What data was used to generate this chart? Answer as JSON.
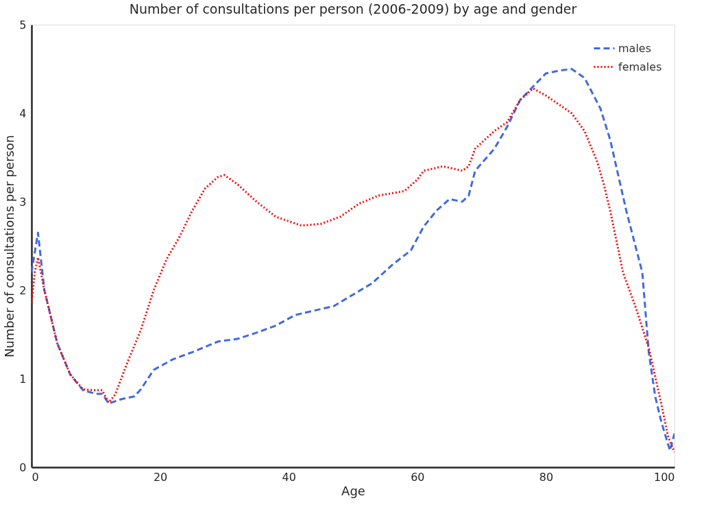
{
  "chart_data": {
    "type": "line",
    "title": "Number of consultations per person (2006-2009) by age and gender",
    "xlabel": "Age",
    "ylabel": "Number of consultations per person",
    "xlim": [
      0,
      100
    ],
    "ylim": [
      0,
      5
    ],
    "xticks": [
      0,
      20,
      40,
      60,
      80,
      100
    ],
    "yticks": [
      0,
      1,
      2,
      3,
      4,
      5
    ],
    "grid": false,
    "legend": "top right",
    "marker": "none",
    "series": [
      {
        "name": "males",
        "color": "#4169e1",
        "line_style": "dashed",
        "x": [
          0,
          1,
          2,
          4,
          6,
          8,
          10,
          11,
          12,
          14,
          16,
          17,
          19,
          22,
          25,
          29,
          32,
          35,
          38,
          41,
          44,
          47,
          50,
          53,
          56,
          59,
          61,
          63,
          65,
          67,
          68,
          69,
          72,
          74,
          76,
          78,
          80,
          82,
          84,
          86,
          88.5,
          90,
          92.5,
          95,
          96,
          97,
          98,
          99.3,
          100
        ],
        "values": [
          2.2,
          2.65,
          2.0,
          1.4,
          1.05,
          0.87,
          0.83,
          0.83,
          0.72,
          0.77,
          0.8,
          0.88,
          1.1,
          1.22,
          1.3,
          1.42,
          1.45,
          1.52,
          1.6,
          1.72,
          1.77,
          1.82,
          1.95,
          2.08,
          2.28,
          2.45,
          2.72,
          2.9,
          3.03,
          3.0,
          3.07,
          3.35,
          3.6,
          3.85,
          4.15,
          4.3,
          4.45,
          4.48,
          4.5,
          4.4,
          4.05,
          3.7,
          2.9,
          2.2,
          1.3,
          0.8,
          0.5,
          0.19,
          0.38
        ]
      },
      {
        "name": "females",
        "color": "#ff0000",
        "line_style": "dotted",
        "x": [
          0,
          0.5,
          1,
          2,
          4,
          6,
          8,
          10,
          11,
          12,
          13,
          15,
          17,
          19,
          21,
          23,
          25,
          27,
          29,
          30,
          32,
          35,
          38,
          42,
          45,
          48,
          51,
          54,
          58,
          60,
          61,
          64,
          67,
          68,
          69,
          72,
          74,
          76,
          78,
          80,
          82,
          84,
          86,
          88,
          89,
          90,
          92,
          94,
          96,
          98,
          99,
          100
        ],
        "values": [
          1.85,
          2.2,
          2.37,
          2.0,
          1.4,
          1.05,
          0.88,
          0.87,
          0.87,
          0.73,
          0.82,
          1.2,
          1.55,
          2.0,
          2.35,
          2.6,
          2.9,
          3.15,
          3.28,
          3.3,
          3.2,
          3.0,
          2.83,
          2.73,
          2.75,
          2.83,
          2.98,
          3.07,
          3.12,
          3.25,
          3.35,
          3.4,
          3.35,
          3.4,
          3.6,
          3.8,
          3.9,
          4.15,
          4.28,
          4.2,
          4.1,
          4.0,
          3.8,
          3.45,
          3.2,
          2.9,
          2.2,
          1.8,
          1.35,
          0.7,
          0.35,
          0.17
        ]
      }
    ]
  }
}
